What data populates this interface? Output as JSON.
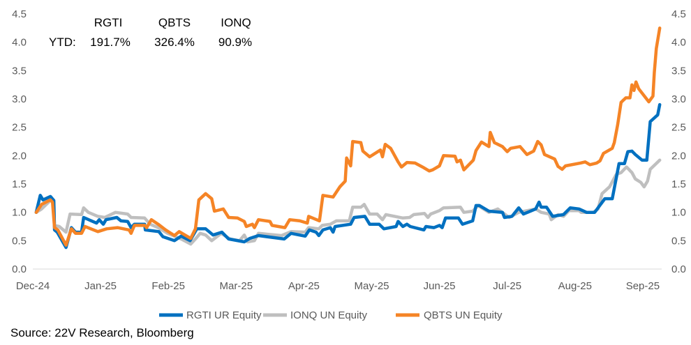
{
  "chart_data": {
    "type": "line",
    "title": "",
    "xlabel": "",
    "ylabel": "",
    "x_unit": "months since Dec-24",
    "x_ticks": [
      "Dec-24",
      "Jan-25",
      "Feb-25",
      "Mar-25",
      "Apr-25",
      "May-25",
      "Jun-25",
      "Jul-25",
      "Aug-25",
      "Sep-25"
    ],
    "ylim": [
      0,
      4.5
    ],
    "y_ticks": [
      "0.0",
      "0.5",
      "1.0",
      "1.5",
      "2.0",
      "2.5",
      "3.0",
      "3.5",
      "4.0",
      "4.5"
    ],
    "y_tick_values": [
      0,
      0.5,
      1,
      1.5,
      2,
      2.5,
      3,
      3.5,
      4,
      4.5
    ],
    "secondary_y_axis": true,
    "grid": false,
    "legend_position": "bottom",
    "annotation": {
      "row_label": "YTD:",
      "tickers": [
        "RGTI",
        "QBTS",
        "IONQ"
      ],
      "values": [
        "191.7%",
        "326.4%",
        "90.9%"
      ]
    },
    "series": [
      {
        "name": "RGTI UR Equity",
        "color": "#0070C0",
        "points": [
          [
            0.05,
            1.0
          ],
          [
            0.11,
            1.3
          ],
          [
            0.15,
            1.22
          ],
          [
            0.26,
            1.28
          ],
          [
            0.31,
            1.21
          ],
          [
            0.32,
            0.69
          ],
          [
            0.36,
            0.65
          ],
          [
            0.49,
            0.38
          ],
          [
            0.57,
            0.73
          ],
          [
            0.63,
            0.65
          ],
          [
            0.72,
            0.65
          ],
          [
            0.75,
            0.91
          ],
          [
            0.94,
            0.81
          ],
          [
            0.98,
            0.87
          ],
          [
            1.04,
            0.79
          ],
          [
            1.08,
            0.87
          ],
          [
            1.24,
            0.91
          ],
          [
            1.3,
            0.85
          ],
          [
            1.4,
            0.84
          ],
          [
            1.45,
            0.73
          ],
          [
            1.5,
            0.79
          ],
          [
            1.65,
            0.79
          ],
          [
            1.66,
            0.69
          ],
          [
            1.86,
            0.66
          ],
          [
            1.92,
            0.57
          ],
          [
            2.09,
            0.5
          ],
          [
            2.19,
            0.58
          ],
          [
            2.32,
            0.5
          ],
          [
            2.42,
            0.71
          ],
          [
            2.55,
            0.71
          ],
          [
            2.66,
            0.6
          ],
          [
            2.79,
            0.65
          ],
          [
            2.89,
            0.53
          ],
          [
            3.12,
            0.48
          ],
          [
            3.2,
            0.54
          ],
          [
            3.33,
            0.59
          ],
          [
            3.71,
            0.53
          ],
          [
            3.81,
            0.63
          ],
          [
            4.02,
            0.58
          ],
          [
            4.08,
            0.69
          ],
          [
            4.18,
            0.65
          ],
          [
            4.22,
            0.59
          ],
          [
            4.28,
            0.69
          ],
          [
            4.39,
            0.73
          ],
          [
            4.43,
            0.65
          ],
          [
            4.46,
            0.75
          ],
          [
            4.69,
            0.79
          ],
          [
            4.74,
            0.91
          ],
          [
            4.9,
            0.93
          ],
          [
            4.97,
            0.79
          ],
          [
            5.11,
            0.79
          ],
          [
            5.18,
            0.71
          ],
          [
            5.36,
            0.75
          ],
          [
            5.39,
            0.84
          ],
          [
            5.46,
            0.75
          ],
          [
            5.52,
            0.79
          ],
          [
            5.57,
            0.75
          ],
          [
            5.77,
            0.69
          ],
          [
            5.8,
            0.75
          ],
          [
            5.92,
            0.73
          ],
          [
            6.0,
            0.77
          ],
          [
            6.04,
            0.73
          ],
          [
            6.09,
            0.9
          ],
          [
            6.28,
            0.9
          ],
          [
            6.34,
            0.79
          ],
          [
            6.49,
            0.85
          ],
          [
            6.54,
            1.12
          ],
          [
            6.59,
            1.12
          ],
          [
            6.73,
            1.02
          ],
          [
            6.93,
            1.0
          ],
          [
            6.96,
            0.91
          ],
          [
            7.07,
            0.93
          ],
          [
            7.17,
            1.08
          ],
          [
            7.24,
            0.97
          ],
          [
            7.42,
            1.06
          ],
          [
            7.47,
            1.18
          ],
          [
            7.5,
            1.09
          ],
          [
            7.58,
            1.09
          ],
          [
            7.67,
            0.93
          ],
          [
            7.83,
            0.96
          ],
          [
            7.93,
            1.08
          ],
          [
            8.06,
            1.06
          ],
          [
            8.17,
            1.0
          ],
          [
            8.29,
            1.0
          ],
          [
            8.34,
            1.08
          ],
          [
            8.44,
            1.24
          ],
          [
            8.55,
            1.24
          ],
          [
            8.65,
            1.86
          ],
          [
            8.73,
            1.86
          ],
          [
            8.78,
            2.07
          ],
          [
            8.84,
            2.08
          ],
          [
            8.89,
            2.02
          ],
          [
            8.99,
            1.92
          ],
          [
            9.06,
            1.92
          ],
          [
            9.11,
            2.6
          ],
          [
            9.22,
            2.72
          ],
          [
            9.25,
            2.9
          ]
        ]
      },
      {
        "name": "IONQ UN Equity",
        "color": "#BFBFBF",
        "points": [
          [
            0.05,
            1.0
          ],
          [
            0.13,
            1.06
          ],
          [
            0.27,
            1.22
          ],
          [
            0.31,
            1.18
          ],
          [
            0.32,
            0.77
          ],
          [
            0.39,
            0.75
          ],
          [
            0.49,
            0.65
          ],
          [
            0.55,
            0.97
          ],
          [
            0.72,
            0.96
          ],
          [
            0.75,
            1.08
          ],
          [
            0.82,
            1.0
          ],
          [
            0.96,
            0.93
          ],
          [
            1.06,
            0.91
          ],
          [
            1.22,
            1.0
          ],
          [
            1.4,
            0.97
          ],
          [
            1.45,
            0.91
          ],
          [
            1.65,
            0.9
          ],
          [
            1.73,
            0.79
          ],
          [
            1.85,
            0.73
          ],
          [
            1.99,
            0.63
          ],
          [
            2.19,
            0.53
          ],
          [
            2.33,
            0.44
          ],
          [
            2.4,
            0.53
          ],
          [
            2.47,
            0.63
          ],
          [
            2.55,
            0.6
          ],
          [
            2.64,
            0.5
          ],
          [
            2.78,
            0.63
          ],
          [
            2.91,
            0.53
          ],
          [
            3.05,
            0.5
          ],
          [
            3.12,
            0.6
          ],
          [
            3.17,
            0.48
          ],
          [
            3.27,
            0.5
          ],
          [
            3.33,
            0.63
          ],
          [
            3.67,
            0.59
          ],
          [
            3.81,
            0.66
          ],
          [
            4.02,
            0.65
          ],
          [
            4.07,
            0.73
          ],
          [
            4.22,
            0.71
          ],
          [
            4.27,
            0.77
          ],
          [
            4.39,
            0.79
          ],
          [
            4.48,
            0.85
          ],
          [
            4.67,
            0.85
          ],
          [
            4.72,
            1.09
          ],
          [
            4.84,
            1.09
          ],
          [
            4.89,
            1.14
          ],
          [
            4.97,
            0.97
          ],
          [
            5.08,
            0.97
          ],
          [
            5.16,
            0.87
          ],
          [
            5.21,
            0.96
          ],
          [
            5.46,
            0.9
          ],
          [
            5.56,
            0.91
          ],
          [
            5.62,
            0.96
          ],
          [
            5.78,
            0.98
          ],
          [
            5.83,
            0.91
          ],
          [
            5.87,
            0.97
          ],
          [
            6.0,
            1.03
          ],
          [
            6.06,
            1.08
          ],
          [
            6.31,
            1.09
          ],
          [
            6.36,
            1.0
          ],
          [
            6.49,
            1.02
          ],
          [
            6.57,
            1.12
          ],
          [
            6.73,
            1.0
          ],
          [
            6.86,
            1.06
          ],
          [
            7.03,
            0.91
          ],
          [
            7.17,
            1.0
          ],
          [
            7.42,
            1.06
          ],
          [
            7.5,
            1.0
          ],
          [
            7.62,
            0.97
          ],
          [
            7.65,
            0.87
          ],
          [
            7.75,
            0.96
          ],
          [
            7.83,
            0.93
          ],
          [
            7.91,
            1.03
          ],
          [
            8.06,
            1.03
          ],
          [
            8.09,
            1.0
          ],
          [
            8.27,
            1.0
          ],
          [
            8.34,
            1.06
          ],
          [
            8.4,
            1.33
          ],
          [
            8.51,
            1.45
          ],
          [
            8.61,
            1.67
          ],
          [
            8.68,
            1.7
          ],
          [
            8.76,
            1.8
          ],
          [
            8.84,
            1.7
          ],
          [
            8.89,
            1.59
          ],
          [
            8.97,
            1.53
          ],
          [
            9.02,
            1.45
          ],
          [
            9.07,
            1.55
          ],
          [
            9.11,
            1.76
          ],
          [
            9.25,
            1.92
          ]
        ]
      },
      {
        "name": "QBTS UN Equity",
        "color": "#F58426",
        "points": [
          [
            0.05,
            1.0
          ],
          [
            0.13,
            1.14
          ],
          [
            0.26,
            1.22
          ],
          [
            0.29,
            1.18
          ],
          [
            0.32,
            0.73
          ],
          [
            0.37,
            0.69
          ],
          [
            0.49,
            0.42
          ],
          [
            0.57,
            0.71
          ],
          [
            0.63,
            0.63
          ],
          [
            0.72,
            0.63
          ],
          [
            0.77,
            0.75
          ],
          [
            0.96,
            0.66
          ],
          [
            1.09,
            0.71
          ],
          [
            1.25,
            0.73
          ],
          [
            1.42,
            0.69
          ],
          [
            1.45,
            0.63
          ],
          [
            1.5,
            0.77
          ],
          [
            1.65,
            0.77
          ],
          [
            1.68,
            0.73
          ],
          [
            1.75,
            0.87
          ],
          [
            1.85,
            0.79
          ],
          [
            1.96,
            0.69
          ],
          [
            2.09,
            0.59
          ],
          [
            2.16,
            0.66
          ],
          [
            2.33,
            0.54
          ],
          [
            2.4,
            0.71
          ],
          [
            2.45,
            1.22
          ],
          [
            2.55,
            1.33
          ],
          [
            2.64,
            1.24
          ],
          [
            2.68,
            1.02
          ],
          [
            2.81,
            1.06
          ],
          [
            2.89,
            0.91
          ],
          [
            3.02,
            0.9
          ],
          [
            3.12,
            0.84
          ],
          [
            3.15,
            0.75
          ],
          [
            3.24,
            0.79
          ],
          [
            3.27,
            0.73
          ],
          [
            3.33,
            0.87
          ],
          [
            3.5,
            0.84
          ],
          [
            3.53,
            0.77
          ],
          [
            3.72,
            0.73
          ],
          [
            3.79,
            0.87
          ],
          [
            3.94,
            0.85
          ],
          [
            4.05,
            0.81
          ],
          [
            4.07,
            0.93
          ],
          [
            4.23,
            0.85
          ],
          [
            4.28,
            1.3
          ],
          [
            4.43,
            1.27
          ],
          [
            4.53,
            1.45
          ],
          [
            4.61,
            1.55
          ],
          [
            4.63,
            1.96
          ],
          [
            4.69,
            1.82
          ],
          [
            4.72,
            2.25
          ],
          [
            4.84,
            2.23
          ],
          [
            4.87,
            2.08
          ],
          [
            4.97,
            1.98
          ],
          [
            5.13,
            2.1
          ],
          [
            5.16,
            1.98
          ],
          [
            5.2,
            2.2
          ],
          [
            5.28,
            2.13
          ],
          [
            5.39,
            1.89
          ],
          [
            5.44,
            1.8
          ],
          [
            5.52,
            1.88
          ],
          [
            5.64,
            1.87
          ],
          [
            5.75,
            1.8
          ],
          [
            5.85,
            1.73
          ],
          [
            5.9,
            1.75
          ],
          [
            6.0,
            1.82
          ],
          [
            6.06,
            2.0
          ],
          [
            6.23,
            1.99
          ],
          [
            6.26,
            1.89
          ],
          [
            6.31,
            1.92
          ],
          [
            6.36,
            1.75
          ],
          [
            6.5,
            1.92
          ],
          [
            6.54,
            2.09
          ],
          [
            6.62,
            2.24
          ],
          [
            6.73,
            2.16
          ],
          [
            6.75,
            2.41
          ],
          [
            6.81,
            2.23
          ],
          [
            6.93,
            2.16
          ],
          [
            7.0,
            2.07
          ],
          [
            7.05,
            2.13
          ],
          [
            7.19,
            2.16
          ],
          [
            7.29,
            2.02
          ],
          [
            7.39,
            2.08
          ],
          [
            7.45,
            2.25
          ],
          [
            7.5,
            2.19
          ],
          [
            7.55,
            2.02
          ],
          [
            7.7,
            1.94
          ],
          [
            7.75,
            1.81
          ],
          [
            7.81,
            1.76
          ],
          [
            7.86,
            1.82
          ],
          [
            8.08,
            1.87
          ],
          [
            8.15,
            1.89
          ],
          [
            8.22,
            1.84
          ],
          [
            8.32,
            1.87
          ],
          [
            8.37,
            1.91
          ],
          [
            8.42,
            2.04
          ],
          [
            8.55,
            2.13
          ],
          [
            8.58,
            2.23
          ],
          [
            8.63,
            2.55
          ],
          [
            8.68,
            2.94
          ],
          [
            8.75,
            3.02
          ],
          [
            8.81,
            3.02
          ],
          [
            8.84,
            3.25
          ],
          [
            8.87,
            3.15
          ],
          [
            8.9,
            3.3
          ],
          [
            8.94,
            3.18
          ],
          [
            9.09,
            2.95
          ],
          [
            9.15,
            3.05
          ],
          [
            9.17,
            3.46
          ],
          [
            9.2,
            3.89
          ],
          [
            9.25,
            4.25
          ]
        ]
      }
    ],
    "source": "Source: 22V Research, Bloomberg"
  }
}
